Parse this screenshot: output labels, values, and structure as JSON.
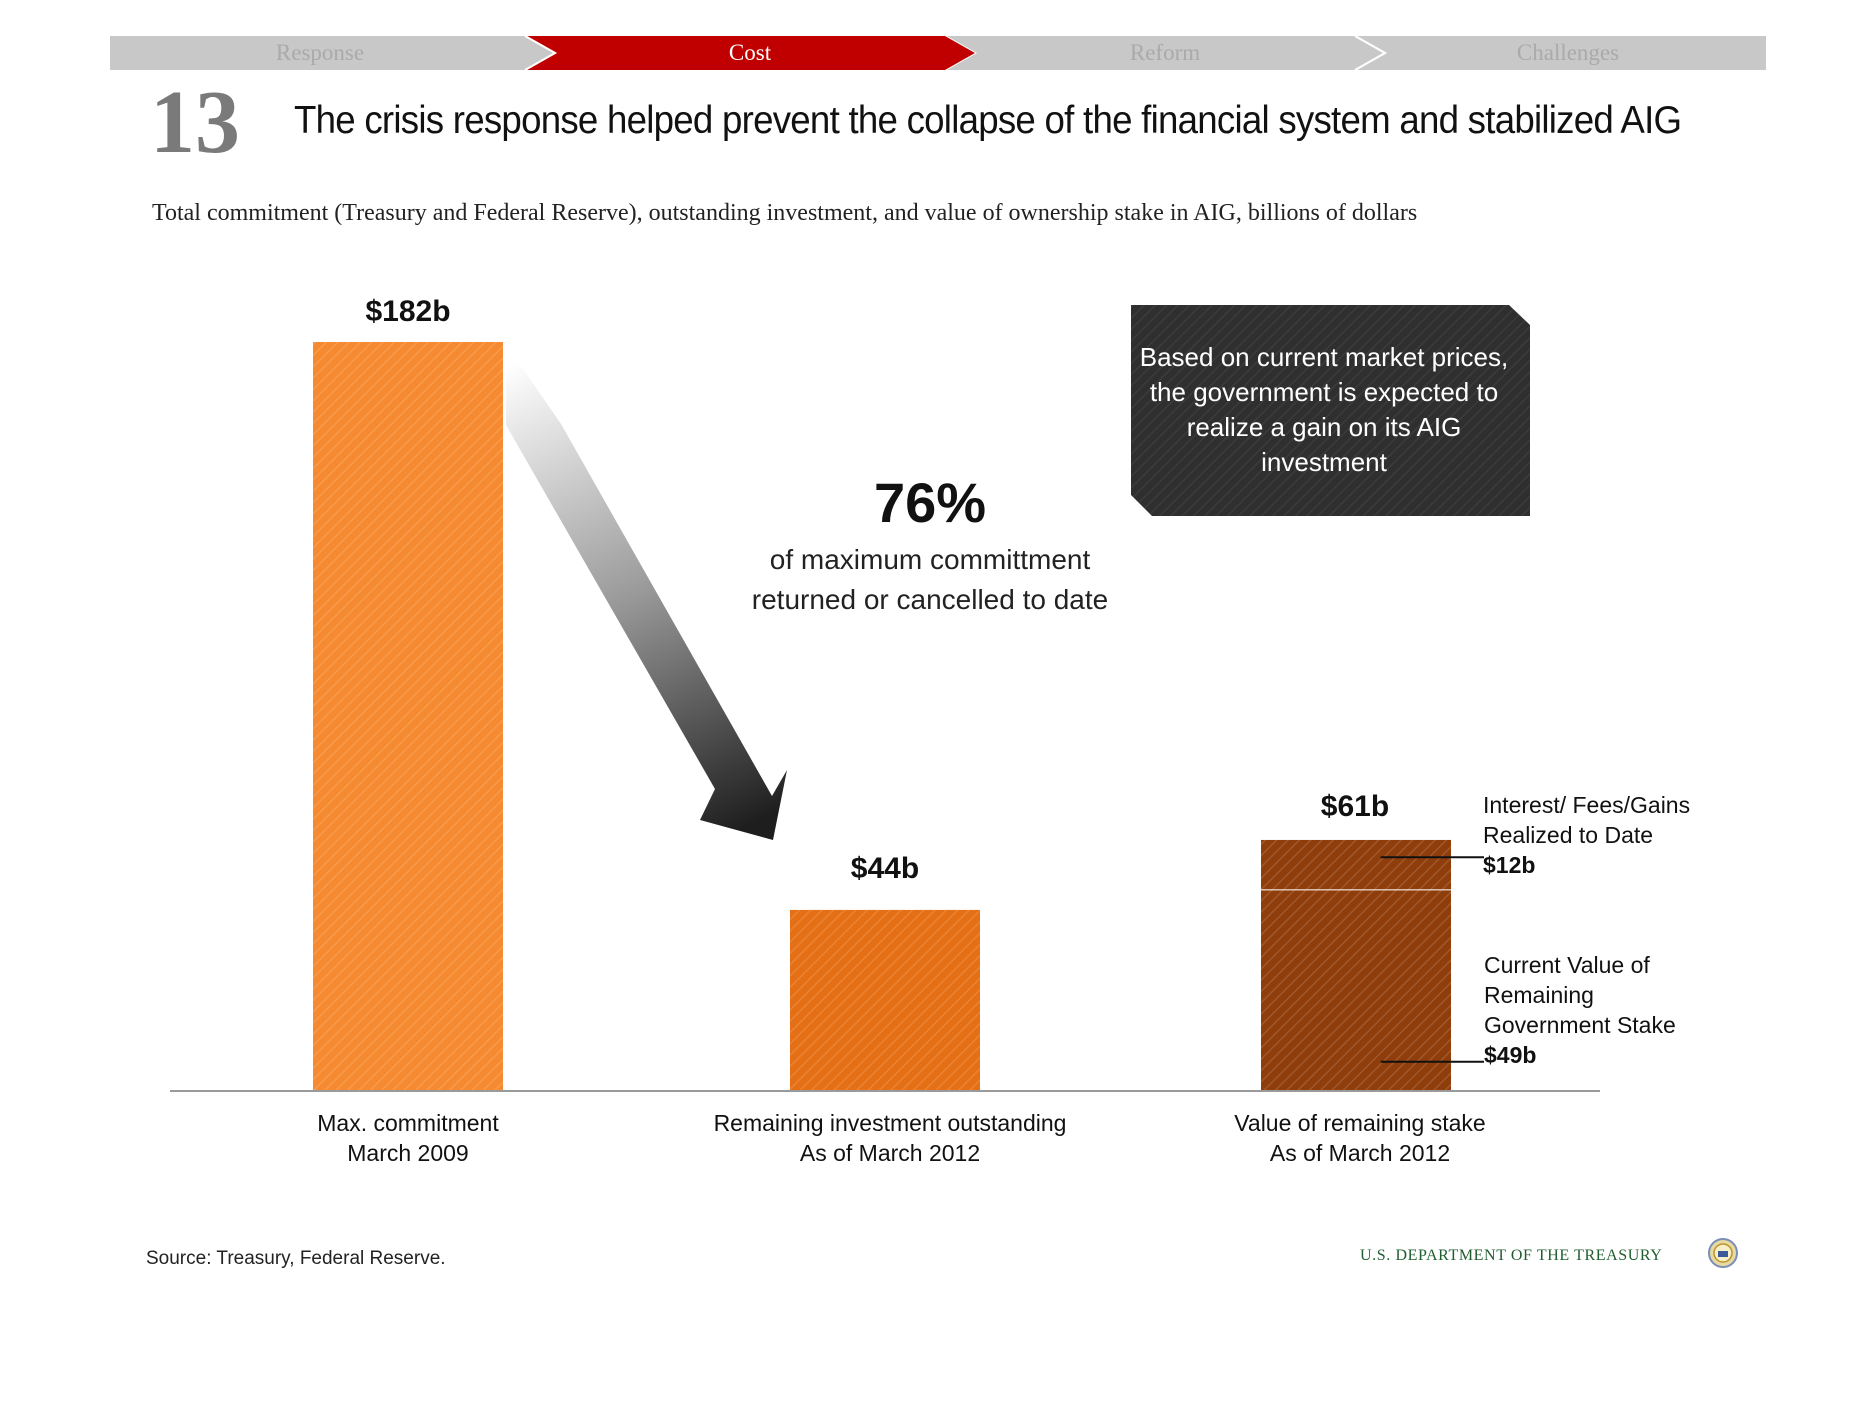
{
  "nav": {
    "tabs": [
      {
        "label": "Response",
        "active": false
      },
      {
        "label": "Cost",
        "active": true
      },
      {
        "label": "Reform",
        "active": false
      },
      {
        "label": "Challenges",
        "active": false
      }
    ],
    "active_color": "#c00000",
    "inactive_color": "#c8c8c8"
  },
  "slide_number": "13",
  "headline": "The crisis response helped prevent the collapse of the financial system and stabilized AIG",
  "subtitle": "Total commitment (Treasury and Federal Reserve), outstanding investment, and value of ownership stake in AIG, billions of dollars",
  "chart_data": {
    "type": "bar",
    "unit": "billions of dollars",
    "categories": [
      [
        "Max. commitment",
        "March 2009"
      ],
      [
        "Remaining investment outstanding",
        "As of March 2012"
      ],
      [
        "Value of remaining stake",
        "As of March 2012"
      ]
    ],
    "values": [
      182,
      44,
      61
    ],
    "bar_labels": [
      "$182b",
      "$44b",
      "$61b"
    ],
    "bar_colors": [
      "#f58a30",
      "#e56f14",
      "#8f3d0a"
    ],
    "stacked_segments": [
      {
        "category_index": 2,
        "name_lines": [
          "Current Value of",
          "Remaining",
          "Government Stake"
        ],
        "value": 49,
        "label": "$49b"
      },
      {
        "category_index": 2,
        "name_lines": [
          "Interest/ Fees/Gains",
          "Realized to Date"
        ],
        "value": 12,
        "label": "$12b"
      }
    ],
    "ylim": [
      0,
      182
    ],
    "grid": false,
    "annotation": {
      "value": "76%",
      "caption_lines": [
        "of maximum committment",
        "returned or cancelled to date"
      ]
    },
    "callout": "Based on current market prices, the government is expected to realize a gain on its AIG investment"
  },
  "footer": {
    "source": "Source: Treasury, Federal Reserve.",
    "department": "U.S. DEPARTMENT OF THE TREASURY"
  }
}
